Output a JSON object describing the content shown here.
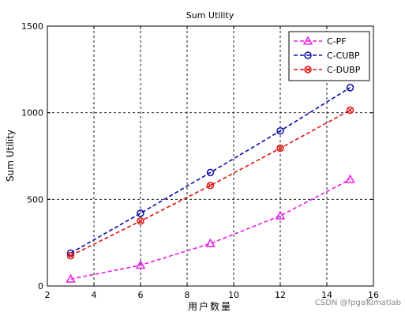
{
  "chart_data": {
    "type": "line",
    "title": "Sum Utility",
    "xlabel": "用户数量",
    "ylabel": "Sum Utility",
    "xlim": [
      2,
      16
    ],
    "ylim": [
      0,
      1500
    ],
    "xticks": [
      2,
      4,
      6,
      8,
      10,
      12,
      14,
      16
    ],
    "yticks": [
      0,
      500,
      1000,
      1500
    ],
    "grid": true,
    "legend_position": "top-right",
    "series": [
      {
        "name": "C-PF",
        "color": "#e61ee6",
        "marker": "triangle",
        "x": [
          3,
          6,
          9,
          12,
          15
        ],
        "y": [
          40,
          120,
          245,
          405,
          615
        ]
      },
      {
        "name": "C-CUBP",
        "color": "#0a0aa8",
        "marker": "circle",
        "x": [
          3,
          6,
          9,
          12,
          15
        ],
        "y": [
          190,
          420,
          655,
          895,
          1145
        ]
      },
      {
        "name": "C-DUBP",
        "color": "#e01616",
        "marker": "circle-x",
        "x": [
          3,
          6,
          9,
          12,
          15
        ],
        "y": [
          175,
          375,
          580,
          795,
          1015
        ]
      }
    ]
  },
  "watermark": "CSDN @fpga和matlab"
}
